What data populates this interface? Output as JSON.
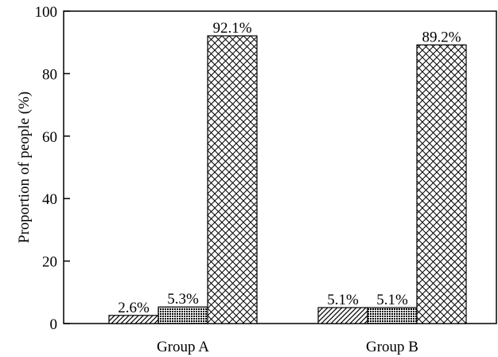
{
  "chart_data": {
    "type": "bar",
    "title": "",
    "xlabel": "",
    "ylabel": "Proportion of people (%)",
    "ylim": [
      0,
      100
    ],
    "yticks": [
      0,
      20,
      40,
      60,
      80,
      100
    ],
    "grid": false,
    "legend": "none",
    "categories": [
      "Group A",
      "Group B"
    ],
    "series": [
      {
        "values": [
          2.6,
          5.1
        ],
        "labels": [
          "2.6%",
          "5.1%"
        ],
        "pattern": "diagonal-hatch"
      },
      {
        "values": [
          5.3,
          5.1
        ],
        "labels": [
          "5.3%",
          "5.1%"
        ],
        "pattern": "dense-dots"
      },
      {
        "values": [
          92.1,
          89.2
        ],
        "labels": [
          "92.1%",
          "89.2%"
        ],
        "pattern": "crosshatch"
      }
    ]
  }
}
